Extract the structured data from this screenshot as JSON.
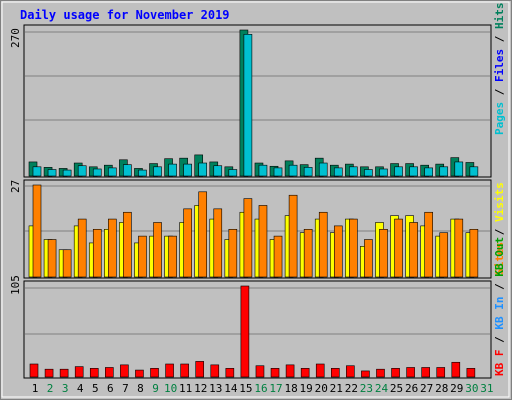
{
  "title": "Daily usage for November 2019",
  "colors": {
    "title": "#0000ff",
    "background": "#c0c0c0",
    "frame": "#000000",
    "hits": "#00805c",
    "files": "#00c0d0",
    "pages": "#00c0d0",
    "visits": "#ffff00",
    "sites": "#ff8000",
    "kb_in": "#1e90ff",
    "kb_out": "#00a000",
    "kb_f": "#ff0000",
    "weekday_label": "#000000",
    "weekend_label": "#008040"
  },
  "legend_right": {
    "top": [
      {
        "text": "Pages",
        "color": "#00c0d0"
      },
      {
        "text": "Files",
        "color": "#0000ff"
      },
      {
        "text": "Hits",
        "color": "#00805c"
      }
    ],
    "middle": [
      {
        "text": "Sites",
        "color": "#ff8000"
      },
      {
        "text": "Visits",
        "color": "#ffff00"
      }
    ],
    "bottom": [
      {
        "text": "KB F",
        "color": "#ff0000"
      },
      {
        "text": "KB In",
        "color": "#1e90ff"
      },
      {
        "text": "KB Out",
        "color": "#00a000"
      }
    ]
  },
  "chart_data": [
    {
      "type": "bar",
      "panel": "hits-files",
      "y_label": "270",
      "categories": [
        "1",
        "2",
        "3",
        "4",
        "5",
        "6",
        "7",
        "8",
        "9",
        "10",
        "11",
        "12",
        "13",
        "14",
        "15",
        "16",
        "17",
        "18",
        "19",
        "20",
        "21",
        "22",
        "23",
        "24",
        "25",
        "26",
        "27",
        "28",
        "29",
        "30",
        "31"
      ],
      "series": [
        {
          "name": "Hits",
          "values": [
            26,
            16,
            14,
            24,
            17,
            20,
            30,
            14,
            23,
            32,
            33,
            39,
            26,
            17,
            270,
            24,
            18,
            28,
            21,
            33,
            20,
            22,
            17,
            17,
            23,
            23,
            20,
            22,
            34,
            25,
            0
          ]
        },
        {
          "name": "Files",
          "values": [
            17,
            12,
            11,
            19,
            13,
            15,
            21,
            11,
            17,
            22,
            22,
            24,
            19,
            12,
            262,
            20,
            15,
            20,
            16,
            24,
            15,
            17,
            12,
            13,
            17,
            17,
            15,
            17,
            26,
            17,
            0
          ]
        }
      ]
    },
    {
      "type": "bar",
      "panel": "visits-sites",
      "y_label": "27",
      "categories": [
        "1",
        "2",
        "3",
        "4",
        "5",
        "6",
        "7",
        "8",
        "9",
        "10",
        "11",
        "12",
        "13",
        "14",
        "15",
        "16",
        "17",
        "18",
        "19",
        "20",
        "21",
        "22",
        "23",
        "24",
        "25",
        "26",
        "27",
        "28",
        "29",
        "30",
        "31"
      ],
      "series": [
        {
          "name": "Visits",
          "values": [
            15,
            11,
            8,
            15,
            10,
            14,
            16,
            10,
            12,
            12,
            16,
            21,
            17,
            11,
            19,
            17,
            11,
            18,
            13,
            17,
            13,
            17,
            9,
            16,
            18,
            18,
            15,
            12,
            17,
            13,
            0
          ]
        },
        {
          "name": "Sites",
          "values": [
            27,
            11,
            8,
            17,
            14,
            17,
            19,
            12,
            16,
            12,
            20,
            25,
            20,
            14,
            23,
            21,
            12,
            24,
            14,
            19,
            15,
            17,
            11,
            14,
            17,
            16,
            19,
            13,
            17,
            14,
            0
          ]
        }
      ]
    },
    {
      "type": "bar",
      "panel": "kbytes",
      "y_label": "105",
      "categories": [
        "1",
        "2",
        "3",
        "4",
        "5",
        "6",
        "7",
        "8",
        "9",
        "10",
        "11",
        "12",
        "13",
        "14",
        "15",
        "16",
        "17",
        "18",
        "19",
        "20",
        "21",
        "22",
        "23",
        "24",
        "25",
        "26",
        "27",
        "28",
        "29",
        "30",
        "31"
      ],
      "series": [
        {
          "name": "KB F",
          "values": [
            15,
            9,
            9,
            12,
            10,
            11,
            14,
            8,
            10,
            15,
            15,
            18,
            14,
            10,
            105,
            13,
            10,
            14,
            10,
            15,
            10,
            13,
            7,
            9,
            10,
            11,
            11,
            11,
            17,
            10,
            0
          ]
        }
      ]
    }
  ],
  "weekend_days": [
    2,
    3,
    9,
    10,
    16,
    17,
    23,
    24,
    30,
    31
  ]
}
